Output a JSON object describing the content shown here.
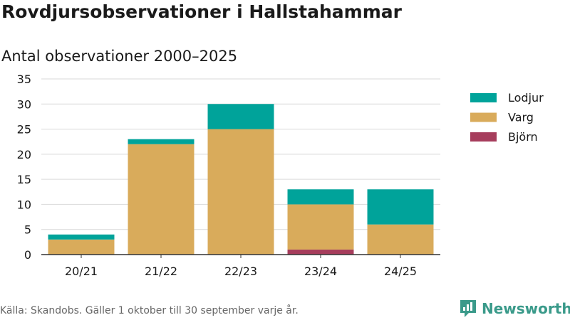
{
  "chart_data": {
    "type": "bar",
    "stacked": true,
    "title": "Rovdjursobservationer i Hallstahammar",
    "subtitle": "Antal observationer 2000–2025",
    "categories": [
      "20/21",
      "21/22",
      "22/23",
      "23/24",
      "24/25"
    ],
    "series": [
      {
        "name": "Björn",
        "color": "#a63d5c",
        "values": [
          0,
          0,
          0,
          1,
          0
        ]
      },
      {
        "name": "Varg",
        "color": "#d9ab5b",
        "values": [
          3,
          22,
          25,
          9,
          6
        ]
      },
      {
        "name": "Lodjur",
        "color": "#00a39a",
        "values": [
          1,
          1,
          5,
          3,
          7
        ]
      }
    ],
    "legend_order": [
      "Lodjur",
      "Varg",
      "Björn"
    ],
    "ylim": [
      0,
      35
    ],
    "yticks": [
      0,
      5,
      10,
      15,
      20,
      25,
      30,
      35
    ],
    "grid": true,
    "legend": "right"
  },
  "source": "Källa: Skandobs. Gäller 1 oktober till 30 september varje år.",
  "brand": {
    "name": "Newsworthy",
    "icon": "bar-chart-badge-icon",
    "color": "#3a9a8a"
  }
}
